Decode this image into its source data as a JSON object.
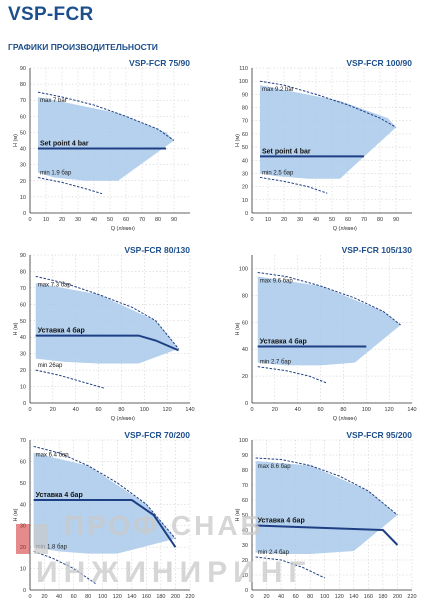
{
  "title": "VSP-FCR",
  "section": "ГРАФИКИ ПРОИЗВОДИТЕЛЬНОСТИ",
  "watermark": {
    "line1": "ПРОФ СНАБ",
    "line2": "ИНЖИНИРИНГ"
  },
  "colors": {
    "title": "#1d4f8c",
    "fill": "#a8c9ea",
    "curve": "#1f3f84",
    "axis": "#333333",
    "grid": "#c9c9c9",
    "watermark": "#c9c9c9"
  },
  "chart_data": [
    {
      "type": "area",
      "title": "VSP-FCR 75/90",
      "xlabel": "Q (л/мин)",
      "ylabel": "H (м)",
      "xlim": [
        0,
        100
      ],
      "ylim": [
        0,
        90
      ],
      "xticks": [
        0,
        10,
        20,
        30,
        40,
        50,
        60,
        70,
        80,
        90
      ],
      "yticks": [
        0,
        10,
        20,
        30,
        40,
        50,
        60,
        70,
        80,
        90
      ],
      "grid": true,
      "max_curve": {
        "label": "max 7 bar",
        "x": [
          5,
          20,
          40,
          60,
          80,
          90
        ],
        "y": [
          75,
          72,
          67,
          60,
          52,
          45
        ]
      },
      "setpoint": {
        "label": "Set point 4 bar",
        "x": [
          5,
          85
        ],
        "y": [
          40,
          40
        ]
      },
      "min_curve": {
        "label": "min 1.9 бар",
        "x": [
          5,
          20,
          35,
          45
        ],
        "y": [
          22,
          19,
          15,
          12
        ]
      },
      "region": {
        "x": [
          5,
          5,
          15,
          35,
          55,
          90,
          85,
          55
        ],
        "y": [
          72,
          25,
          22,
          20,
          20,
          45,
          50,
          62
        ]
      }
    },
    {
      "type": "area",
      "title": "VSP-FCR 100/90",
      "xlabel": "Q (л/мин)",
      "ylabel": "H (м)",
      "xlim": [
        0,
        100
      ],
      "ylim": [
        0,
        110
      ],
      "xticks": [
        0,
        10,
        20,
        30,
        40,
        50,
        60,
        70,
        80,
        90
      ],
      "yticks": [
        0,
        10,
        20,
        30,
        40,
        50,
        60,
        70,
        80,
        90,
        100,
        110
      ],
      "grid": true,
      "max_curve": {
        "label": "max 9.2 bar",
        "x": [
          5,
          20,
          40,
          60,
          80,
          90
        ],
        "y": [
          100,
          97,
          90,
          82,
          72,
          65
        ]
      },
      "setpoint": {
        "label": "Set point 4 bar",
        "x": [
          5,
          70
        ],
        "y": [
          43,
          43
        ]
      },
      "min_curve": {
        "label": "min 2.5 бар",
        "x": [
          5,
          20,
          35,
          47
        ],
        "y": [
          27,
          24,
          20,
          15
        ]
      },
      "region": {
        "x": [
          5,
          5,
          15,
          35,
          55,
          90,
          85,
          55
        ],
        "y": [
          97,
          30,
          28,
          26,
          26,
          65,
          72,
          85
        ]
      }
    },
    {
      "type": "area",
      "title": "VSP-FCR 80/130",
      "xlabel": "Q (л/мин)",
      "ylabel": "H (м)",
      "xlim": [
        0,
        140
      ],
      "ylim": [
        0,
        90
      ],
      "xticks": [
        0,
        20,
        40,
        60,
        80,
        100,
        120,
        140
      ],
      "yticks": [
        0,
        10,
        20,
        30,
        40,
        50,
        60,
        70,
        80,
        90
      ],
      "grid": true,
      "max_curve": {
        "label": "max 7.3 бар",
        "x": [
          5,
          30,
          60,
          90,
          110,
          130
        ],
        "y": [
          77,
          73,
          66,
          58,
          50,
          33
        ]
      },
      "setpoint": {
        "label": "Уставка 4 бар",
        "x": [
          5,
          95,
          110,
          130
        ],
        "y": [
          41,
          41,
          38,
          32
        ]
      },
      "min_curve": {
        "label": "min 26ар",
        "x": [
          5,
          25,
          45,
          65
        ],
        "y": [
          20,
          17,
          13,
          9
        ]
      },
      "region": {
        "x": [
          5,
          5,
          30,
          60,
          95,
          130,
          110,
          60
        ],
        "y": [
          73,
          27,
          25,
          24,
          24,
          33,
          50,
          66
        ]
      }
    },
    {
      "type": "area",
      "title": "VSP-FCR 105/130",
      "xlabel": "Q (л/мин)",
      "ylabel": "H (м)",
      "xlim": [
        0,
        140
      ],
      "ylim": [
        0,
        110
      ],
      "xticks": [
        0,
        20,
        40,
        60,
        80,
        100,
        120,
        140
      ],
      "yticks": [
        0,
        20,
        40,
        60,
        80,
        100
      ],
      "grid": true,
      "max_curve": {
        "label": "max 9.6 бар",
        "x": [
          5,
          30,
          60,
          90,
          115,
          130
        ],
        "y": [
          97,
          94,
          87,
          78,
          68,
          58
        ]
      },
      "setpoint": {
        "label": "Уставка 4 бар",
        "x": [
          5,
          100
        ],
        "y": [
          42,
          42
        ]
      },
      "min_curve": {
        "label": "min 2.7 бар",
        "x": [
          5,
          30,
          50,
          65
        ],
        "y": [
          27,
          24,
          20,
          15
        ]
      },
      "region": {
        "x": [
          5,
          5,
          30,
          60,
          90,
          130,
          115,
          60
        ],
        "y": [
          94,
          30,
          28,
          28,
          30,
          58,
          68,
          87
        ]
      }
    },
    {
      "type": "area",
      "title": "VSP-FCR 70/200",
      "xlabel": "Q (л/мин)",
      "ylabel": "H (м)",
      "xlim": [
        0,
        220
      ],
      "ylim": [
        0,
        70
      ],
      "xticks": [
        0,
        20,
        40,
        60,
        80,
        100,
        120,
        140,
        160,
        180,
        200,
        220
      ],
      "yticks": [
        0,
        10,
        20,
        30,
        40,
        50,
        60,
        70
      ],
      "grid": true,
      "max_curve": {
        "label": "max 6.4 бар",
        "x": [
          5,
          40,
          80,
          120,
          160,
          200
        ],
        "y": [
          67,
          64,
          58,
          50,
          40,
          24
        ]
      },
      "setpoint": {
        "label": "Уставка 4 бар",
        "x": [
          5,
          140,
          170,
          200
        ],
        "y": [
          42,
          42,
          35,
          20
        ]
      },
      "min_curve": {
        "label": "min 1.8 бар",
        "x": [
          5,
          30,
          60,
          90
        ],
        "y": [
          18,
          15,
          10,
          3
        ]
      },
      "region": {
        "x": [
          5,
          5,
          40,
          80,
          120,
          200,
          160,
          80
        ],
        "y": [
          64,
          20,
          18,
          17,
          17,
          24,
          40,
          58
        ]
      }
    },
    {
      "type": "area",
      "title": "VSP-FCR 95/200",
      "xlabel": "Q (л/мин)",
      "ylabel": "H (м)",
      "xlim": [
        0,
        220
      ],
      "ylim": [
        0,
        100
      ],
      "xticks": [
        0,
        20,
        40,
        60,
        80,
        100,
        120,
        140,
        160,
        180,
        200,
        220
      ],
      "yticks": [
        0,
        10,
        20,
        30,
        40,
        50,
        60,
        70,
        80,
        90,
        100
      ],
      "grid": true,
      "max_curve": {
        "label": "max 8.6 бар",
        "x": [
          5,
          40,
          80,
          120,
          160,
          200
        ],
        "y": [
          88,
          87,
          83,
          76,
          66,
          50
        ]
      },
      "setpoint": {
        "label": "Уставка 4 бар",
        "x": [
          5,
          180,
          200
        ],
        "y": [
          43,
          40,
          30
        ]
      },
      "min_curve": {
        "label": "min 2.4 бар",
        "x": [
          5,
          40,
          70,
          100
        ],
        "y": [
          22,
          20,
          15,
          8
        ]
      },
      "region": {
        "x": [
          5,
          5,
          40,
          80,
          140,
          200,
          160,
          80
        ],
        "y": [
          86,
          25,
          24,
          24,
          26,
          50,
          66,
          83
        ]
      }
    }
  ]
}
